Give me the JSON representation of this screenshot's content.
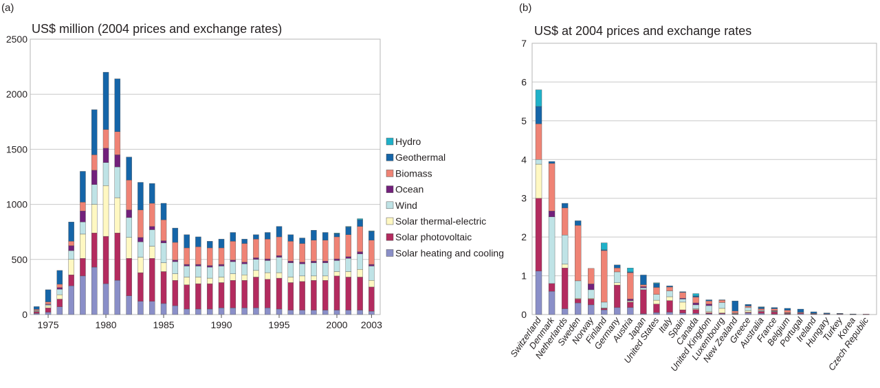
{
  "colors": {
    "Hydro": "#1fb1c9",
    "Geothermal": "#1565a8",
    "Biomass": "#ef8375",
    "Ocean": "#72207b",
    "Wind": "#bfe3e6",
    "Solar thermal-electric": "#fff8c2",
    "Solar photovoltaic": "#b32b5f",
    "Solar heating and cooling": "#8a8fc8"
  },
  "chart_data": [
    {
      "type": "bar",
      "stacked": true,
      "panel_label": "(a)",
      "title": "US$ million (2004 prices and exchange rates)",
      "ylim": [
        0,
        2500
      ],
      "yticks": [
        0,
        500,
        1000,
        1500,
        2000,
        2500
      ],
      "x_tick_labels": [
        "1975",
        "1980",
        "1985",
        "1990",
        "1995",
        "2000",
        "2003"
      ],
      "x_tick_years": [
        1975,
        1980,
        1985,
        1990,
        1995,
        2000,
        2003
      ],
      "x": [
        1974,
        1975,
        1976,
        1977,
        1978,
        1979,
        1980,
        1981,
        1982,
        1983,
        1984,
        1985,
        1986,
        1987,
        1988,
        1989,
        1990,
        1991,
        1992,
        1993,
        1994,
        1995,
        1996,
        1997,
        1998,
        1999,
        2000,
        2001,
        2002,
        2003
      ],
      "legend": {
        "placement": "right",
        "entries": [
          "Hydro",
          "Geothermal",
          "Biomass",
          "Ocean",
          "Wind",
          "Solar thermal-electric",
          "Solar photovoltaic",
          "Solar heating and cooling"
        ]
      },
      "series": [
        {
          "name": "Solar heating and cooling",
          "values": [
            10,
            20,
            70,
            260,
            350,
            430,
            280,
            310,
            170,
            120,
            120,
            100,
            80,
            50,
            50,
            50,
            60,
            60,
            60,
            60,
            60,
            50,
            40,
            40,
            40,
            40,
            40,
            40,
            40,
            30
          ]
        },
        {
          "name": "Solar photovoltaic",
          "values": [
            15,
            40,
            70,
            100,
            160,
            310,
            430,
            430,
            340,
            260,
            390,
            290,
            230,
            220,
            230,
            230,
            230,
            250,
            250,
            280,
            260,
            280,
            250,
            260,
            270,
            270,
            310,
            300,
            300,
            220
          ]
        },
        {
          "name": "Solar thermal-electric",
          "values": [
            5,
            20,
            40,
            140,
            220,
            260,
            460,
            320,
            190,
            140,
            110,
            80,
            60,
            70,
            60,
            50,
            50,
            60,
            50,
            60,
            60,
            50,
            50,
            50,
            40,
            40,
            40,
            50,
            70,
            60
          ]
        },
        {
          "name": "Wind",
          "values": [
            5,
            10,
            50,
            80,
            110,
            180,
            210,
            280,
            180,
            140,
            150,
            180,
            110,
            100,
            100,
            100,
            100,
            110,
            100,
            100,
            110,
            140,
            130,
            110,
            120,
            120,
            100,
            120,
            140,
            130
          ]
        },
        {
          "name": "Ocean",
          "values": [
            2,
            5,
            15,
            45,
            100,
            130,
            130,
            110,
            70,
            40,
            30,
            20,
            15,
            15,
            15,
            15,
            15,
            15,
            15,
            15,
            15,
            15,
            15,
            15,
            15,
            15,
            15,
            15,
            20,
            15
          ]
        },
        {
          "name": "Biomass",
          "values": [
            10,
            20,
            30,
            40,
            80,
            140,
            170,
            210,
            270,
            250,
            210,
            190,
            160,
            150,
            160,
            160,
            150,
            170,
            170,
            170,
            180,
            170,
            180,
            170,
            190,
            190,
            200,
            200,
            230,
            220
          ]
        },
        {
          "name": "Geothermal",
          "values": [
            25,
            110,
            125,
            175,
            280,
            410,
            520,
            480,
            210,
            250,
            180,
            150,
            130,
            120,
            90,
            60,
            80,
            80,
            40,
            40,
            60,
            95,
            60,
            50,
            90,
            70,
            30,
            70,
            60,
            80
          ]
        },
        {
          "name": "Hydro",
          "values": [
            0,
            0,
            0,
            0,
            0,
            0,
            0,
            0,
            0,
            0,
            0,
            0,
            0,
            0,
            0,
            0,
            0,
            0,
            0,
            0,
            0,
            0,
            0,
            0,
            0,
            0,
            5,
            5,
            10,
            5
          ]
        }
      ]
    },
    {
      "type": "bar",
      "stacked": true,
      "panel_label": "(b)",
      "title": "US$ at 2004 prices and exchange rates",
      "ylim": [
        0,
        7
      ],
      "yticks": [
        0,
        1,
        2,
        3,
        4,
        5,
        6,
        7
      ],
      "categories": [
        "Switzerland",
        "Denmark",
        "Netherlands",
        "Sweden",
        "Norway",
        "Finland",
        "Germany",
        "Austria",
        "Japan",
        "United States",
        "Italy",
        "Spain",
        "Canada",
        "United Kingdom",
        "Luxembourg",
        "New Zealand",
        "Greece",
        "Australia",
        "France",
        "Belgium",
        "Portugal",
        "Ireland",
        "Hungary",
        "Turkey",
        "Korea",
        "Czech Republic"
      ],
      "series": [
        {
          "name": "Solar heating and cooling",
          "values": [
            1.12,
            0.6,
            0.15,
            0.3,
            0.25,
            0.12,
            0.18,
            0.18,
            0.02,
            0.05,
            0.06,
            0.04,
            0.03,
            0.02,
            0.02,
            0.01,
            0.04,
            0.03,
            0.01,
            0.01,
            0.02,
            0.01,
            0.01,
            0.01,
            0.005,
            0.005
          ]
        },
        {
          "name": "Solar photovoltaic",
          "values": [
            1.88,
            0.2,
            1.05,
            0.1,
            0.15,
            0.04,
            0.58,
            0.14,
            0.62,
            0.22,
            0.3,
            0.08,
            0.1,
            0.03,
            0.02,
            0.01,
            0.02,
            0.05,
            0.06,
            0.02,
            0.02,
            0.01,
            0.01,
            0.01,
            0.005,
            0.005
          ]
        },
        {
          "name": "Solar thermal-electric",
          "values": [
            0.88,
            0.0,
            0.1,
            0.02,
            0.02,
            0.01,
            0.06,
            0.02,
            0.0,
            0.1,
            0.1,
            0.2,
            0.02,
            0.03,
            0.12,
            0.01,
            0.04,
            0.01,
            0.01,
            0.01,
            0.0,
            0.0,
            0.0,
            0.0,
            0.0,
            0.0
          ]
        },
        {
          "name": "Wind",
          "values": [
            0.12,
            1.72,
            0.75,
            0.45,
            0.22,
            0.15,
            0.28,
            0.02,
            0.05,
            0.15,
            0.15,
            0.08,
            0.1,
            0.15,
            0.15,
            0.01,
            0.08,
            0.02,
            0.01,
            0.01,
            0.0,
            0.0,
            0.0,
            0.0,
            0.0,
            0.0
          ]
        },
        {
          "name": "Ocean",
          "values": [
            0.0,
            0.15,
            0.0,
            0.0,
            0.15,
            0.0,
            0.0,
            0.04,
            0.03,
            0.0,
            0.0,
            0.02,
            0.05,
            0.04,
            0.0,
            0.0,
            0.0,
            0.0,
            0.01,
            0.0,
            0.0,
            0.0,
            0.0,
            0.0,
            0.0,
            0.0
          ]
        },
        {
          "name": "Biomass",
          "values": [
            0.92,
            1.23,
            0.7,
            1.43,
            0.4,
            1.33,
            0.1,
            0.68,
            0.05,
            0.18,
            0.1,
            0.15,
            0.15,
            0.08,
            0.06,
            0.05,
            0.04,
            0.04,
            0.05,
            0.06,
            0.02,
            0.01,
            0.0,
            0.0,
            0.0,
            0.0
          ]
        },
        {
          "name": "Geothermal",
          "values": [
            0.45,
            0.05,
            0.12,
            0.12,
            0.0,
            0.02,
            0.08,
            0.02,
            0.25,
            0.1,
            0.03,
            0.02,
            0.03,
            0.03,
            0.01,
            0.26,
            0.04,
            0.04,
            0.03,
            0.05,
            0.08,
            0.04,
            0.02,
            0.01,
            0.005,
            0.0
          ]
        },
        {
          "name": "Hydro",
          "values": [
            0.43,
            0.0,
            0.0,
            0.0,
            0.0,
            0.18,
            0.0,
            0.1,
            0.0,
            0.02,
            0.0,
            0.0,
            0.06,
            0.0,
            0.0,
            0.0,
            0.0,
            0.01,
            0.0,
            0.0,
            0.0,
            0.0,
            0.0,
            0.0,
            0.0,
            0.0
          ]
        }
      ]
    }
  ]
}
